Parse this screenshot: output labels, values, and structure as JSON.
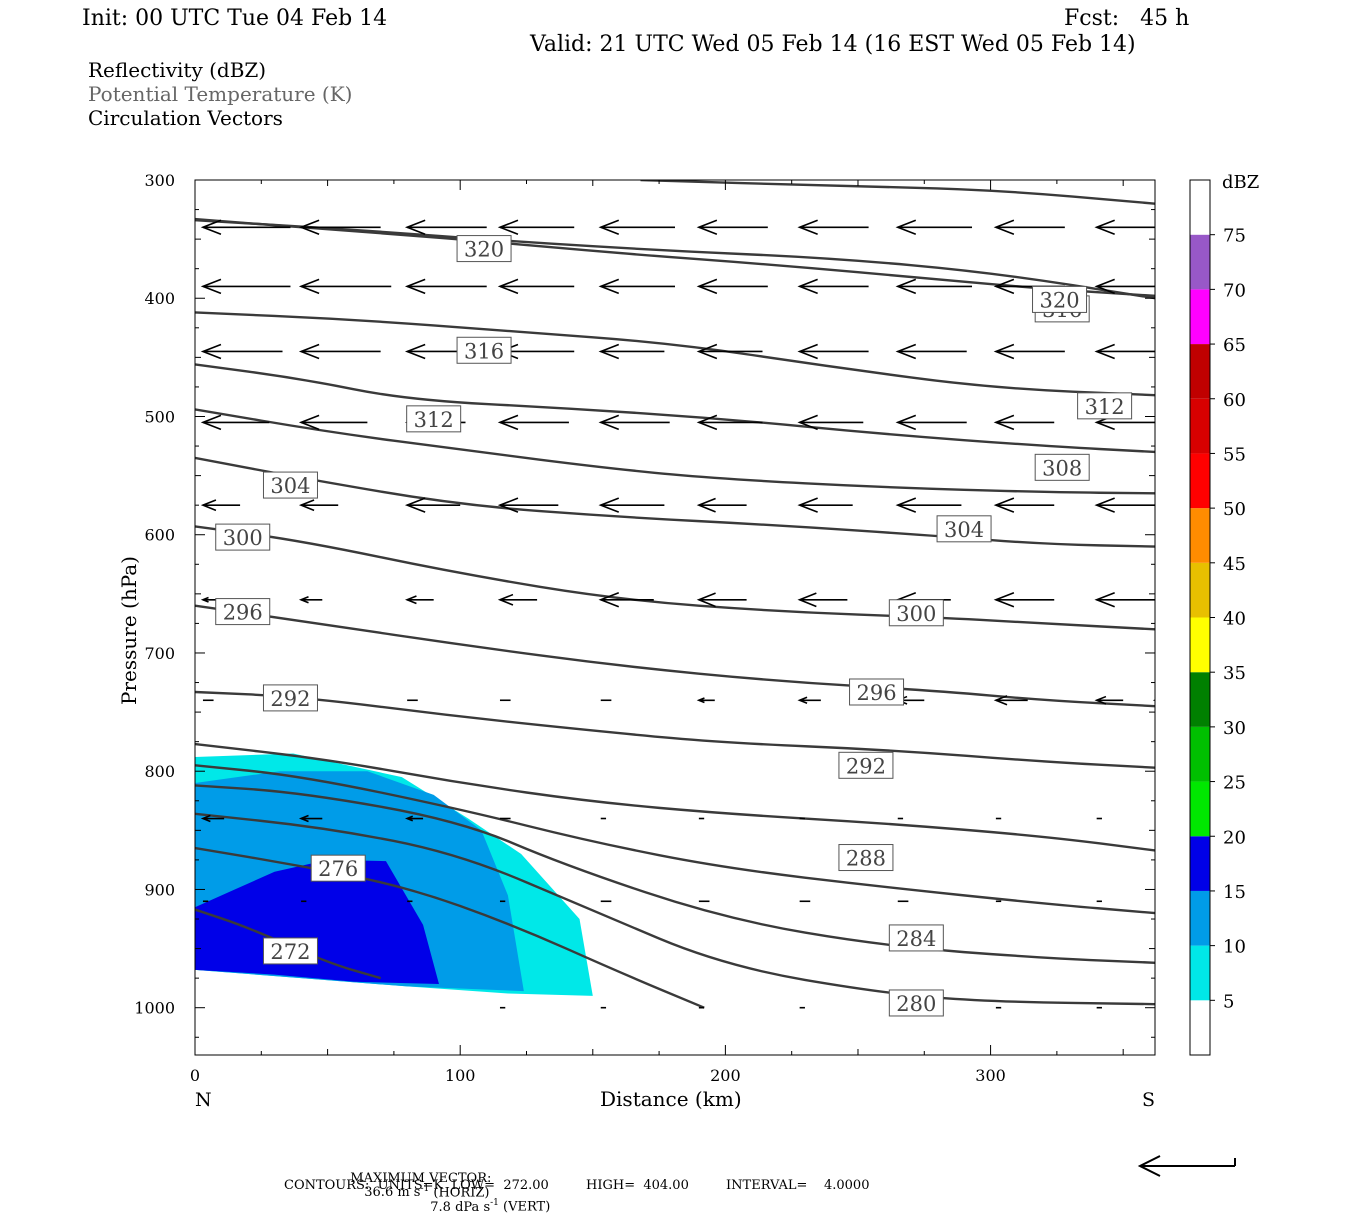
{
  "header": {
    "init": "Init: 00 UTC Tue 04 Feb 14",
    "fcst": "Fcst:   45 h",
    "valid": "Valid: 21 UTC Wed 05 Feb 14 (16 EST Wed 05 Feb 14)"
  },
  "fields": {
    "reflectivity": "Reflectivity (dBZ)",
    "theta": "Potential Temperature (K)",
    "vectors": "Circulation Vectors"
  },
  "chart_data": {
    "type": "contour",
    "xlabel": "Distance (km)",
    "ylabel": "Pressure (hPa)",
    "xlim": [
      0,
      362
    ],
    "ylim": [
      300,
      1040
    ],
    "x_ticks": [
      "0",
      "100",
      "200",
      "300"
    ],
    "y_ticks": [
      "300",
      "400",
      "500",
      "600",
      "700",
      "800",
      "900",
      "1000"
    ],
    "x_end_labels": {
      "left": "N",
      "right": "S"
    },
    "colorbar": {
      "unit": "dBZ",
      "levels": [
        "5",
        "10",
        "15",
        "20",
        "25",
        "30",
        "35",
        "40",
        "45",
        "50",
        "55",
        "60",
        "65",
        "70",
        "75"
      ],
      "colors": [
        "#ffffff",
        "#00e8e8",
        "#009ce8",
        "#0000e8",
        "#00e800",
        "#00c000",
        "#008000",
        "#ffff00",
        "#e8c000",
        "#ff8c00",
        "#ff0000",
        "#d80000",
        "#c00000",
        "#ff00ff",
        "#9858c8",
        "#ffffff"
      ]
    },
    "reflectivity_regions": [
      {
        "dbz": 5,
        "color": "#00e8e8",
        "polygon": [
          [
            0,
            788
          ],
          [
            37,
            785
          ],
          [
            78,
            805
          ],
          [
            103,
            840
          ],
          [
            123,
            870
          ],
          [
            145,
            925
          ],
          [
            150,
            990
          ],
          [
            118,
            988
          ],
          [
            80,
            982
          ],
          [
            40,
            975
          ],
          [
            0,
            968
          ]
        ]
      },
      {
        "dbz": 10,
        "color": "#009ce8",
        "polygon": [
          [
            0,
            810
          ],
          [
            32,
            800
          ],
          [
            65,
            800
          ],
          [
            90,
            820
          ],
          [
            108,
            850
          ],
          [
            118,
            905
          ],
          [
            124,
            986
          ],
          [
            80,
            982
          ],
          [
            40,
            975
          ],
          [
            0,
            968
          ]
        ]
      },
      {
        "dbz": 15,
        "color": "#0000e8",
        "polygon": [
          [
            0,
            915
          ],
          [
            30,
            885
          ],
          [
            50,
            875
          ],
          [
            72,
            876
          ],
          [
            86,
            930
          ],
          [
            92,
            980
          ],
          [
            60,
            978
          ],
          [
            30,
            972
          ],
          [
            0,
            968
          ]
        ]
      }
    ],
    "theta_contours": [
      {
        "label": "272",
        "points": [
          [
            0,
            917
          ],
          [
            20,
            932
          ],
          [
            50,
            962
          ],
          [
            70,
            975
          ]
        ],
        "label_at": [
          36,
          952
        ]
      },
      {
        "label": "276",
        "points": [
          [
            0,
            865
          ],
          [
            40,
            880
          ],
          [
            80,
            898
          ],
          [
            120,
            930
          ],
          [
            160,
            970
          ],
          [
            192,
            1000
          ]
        ],
        "label_at": [
          54,
          882
        ]
      },
      {
        "label": "280",
        "points": [
          [
            0,
            836
          ],
          [
            50,
            848
          ],
          [
            100,
            870
          ],
          [
            150,
            918
          ],
          [
            200,
            965
          ],
          [
            260,
            988
          ],
          [
            300,
            995
          ],
          [
            362,
            997
          ]
        ],
        "label_at": [
          272,
          996
        ]
      },
      {
        "label": "284",
        "points": [
          [
            0,
            812
          ],
          [
            40,
            818
          ],
          [
            100,
            842
          ],
          [
            140,
            880
          ],
          [
            200,
            925
          ],
          [
            260,
            948
          ],
          [
            320,
            958
          ],
          [
            362,
            962
          ]
        ],
        "label_at": [
          272,
          941
        ]
      },
      {
        "label": "288",
        "points": [
          [
            0,
            795
          ],
          [
            40,
            804
          ],
          [
            100,
            832
          ],
          [
            150,
            860
          ],
          [
            200,
            882
          ],
          [
            260,
            898
          ],
          [
            320,
            912
          ],
          [
            362,
            920
          ]
        ],
        "label_at": [
          253,
          873
        ]
      },
      {
        "label": "292",
        "points": [
          [
            0,
            777
          ],
          [
            50,
            790
          ],
          [
            100,
            810
          ],
          [
            150,
            826
          ],
          [
            200,
            836
          ],
          [
            260,
            844
          ],
          [
            320,
            855
          ],
          [
            362,
            867
          ]
        ],
        "label_at": [
          253,
          795
        ]
      },
      {
        "label": "296",
        "points": [
          [
            0,
            733
          ],
          [
            40,
            737
          ],
          [
            100,
            754
          ],
          [
            160,
            768
          ],
          [
            200,
            776
          ],
          [
            262,
            782
          ],
          [
            320,
            792
          ],
          [
            362,
            797
          ]
        ],
        "label_at": [
          257,
          733
        ]
      },
      {
        "label": "300",
        "points": [
          [
            0,
            660
          ],
          [
            40,
            673
          ],
          [
            100,
            693
          ],
          [
            160,
            711
          ],
          [
            220,
            724
          ],
          [
            280,
            732
          ],
          [
            320,
            740
          ],
          [
            362,
            745
          ]
        ],
        "label_at": [
          272,
          666
        ]
      },
      {
        "label": "304",
        "points": [
          [
            0,
            593
          ],
          [
            40,
            605
          ],
          [
            100,
            633
          ],
          [
            160,
            655
          ],
          [
            220,
            665
          ],
          [
            280,
            670
          ],
          [
            320,
            675
          ],
          [
            362,
            680
          ]
        ],
        "label_at": [
          290,
          595
        ]
      },
      {
        "label": "308",
        "points": [
          [
            0,
            535
          ],
          [
            40,
            552
          ],
          [
            100,
            575
          ],
          [
            160,
            585
          ],
          [
            220,
            592
          ],
          [
            280,
            601
          ],
          [
            320,
            608
          ],
          [
            362,
            610
          ]
        ],
        "label_at": [
          327,
          543
        ]
      },
      {
        "label": "312",
        "points": [
          [
            0,
            494
          ],
          [
            50,
            513
          ],
          [
            100,
            528
          ],
          [
            160,
            545
          ],
          [
            200,
            553
          ],
          [
            260,
            560
          ],
          [
            320,
            564
          ],
          [
            362,
            565
          ]
        ],
        "label_at": [
          343,
          491
        ]
      },
      {
        "label": "316",
        "points": [
          [
            0,
            456
          ],
          [
            40,
            468
          ],
          [
            80,
            486
          ],
          [
            140,
            493
          ],
          [
            200,
            502
          ],
          [
            260,
            515
          ],
          [
            320,
            525
          ],
          [
            362,
            530
          ]
        ],
        "label_at": [
          327,
          409
        ]
      },
      {
        "label": "",
        "points": [
          [
            0,
            412
          ],
          [
            60,
            418
          ],
          [
            120,
            428
          ],
          [
            180,
            438
          ],
          [
            240,
            458
          ],
          [
            300,
            476
          ],
          [
            362,
            482
          ]
        ],
        "label_at": null
      },
      {
        "label": "",
        "points": [
          [
            0,
            334
          ],
          [
            60,
            342
          ],
          [
            120,
            352
          ],
          [
            180,
            360
          ],
          [
            240,
            366
          ],
          [
            300,
            378
          ],
          [
            362,
            400
          ]
        ],
        "label_at": null
      },
      {
        "label": "",
        "points": [
          [
            0,
            333
          ],
          [
            40,
            340
          ],
          [
            100,
            350
          ],
          [
            160,
            362
          ],
          [
            220,
            372
          ],
          [
            280,
            384
          ],
          [
            320,
            392
          ],
          [
            362,
            398
          ]
        ],
        "label_at": null
      },
      {
        "label": "",
        "points": [
          [
            168,
            300
          ],
          [
            240,
            305
          ],
          [
            300,
            308
          ],
          [
            362,
            320
          ]
        ],
        "label_at": null
      }
    ],
    "contour_label_boxes": [
      {
        "label": "320",
        "at": [
          109,
          358
        ]
      },
      {
        "label": "320",
        "at": [
          326,
          401
        ]
      },
      {
        "label": "316",
        "at": [
          109,
          444
        ]
      },
      {
        "label": "312",
        "at": [
          90,
          502
        ]
      },
      {
        "label": "304",
        "at": [
          36,
          558
        ]
      },
      {
        "label": "300",
        "at": [
          18,
          602
        ]
      },
      {
        "label": "296",
        "at": [
          18,
          665
        ]
      },
      {
        "label": "292",
        "at": [
          36,
          738
        ]
      }
    ],
    "vectors": {
      "rows_hpa": [
        340,
        390,
        445,
        505,
        575,
        655,
        740,
        840,
        910,
        1000
      ],
      "x_km": [
        3,
        40,
        80,
        115,
        153,
        190,
        228,
        265,
        302,
        340,
        362
      ],
      "lengths_km": [
        [
          33,
          30,
          30,
          28,
          28,
          26,
          26,
          28,
          26,
          26,
          26
        ],
        [
          33,
          34,
          30,
          28,
          28,
          26,
          26,
          28,
          26,
          26,
          26
        ],
        [
          30,
          30,
          20,
          28,
          24,
          24,
          26,
          26,
          26,
          26,
          18
        ],
        [
          25,
          25,
          22,
          26,
          26,
          24,
          24,
          26,
          22,
          22,
          14
        ],
        [
          14,
          14,
          20,
          22,
          24,
          18,
          20,
          24,
          22,
          30,
          18
        ],
        [
          6,
          8,
          10,
          14,
          20,
          18,
          18,
          20,
          22,
          24,
          20
        ],
        [
          4,
          4,
          4,
          4,
          4,
          6,
          8,
          10,
          12,
          10,
          8
        ],
        [
          8,
          8,
          6,
          4,
          2,
          2,
          2,
          2,
          2,
          2,
          2
        ],
        [
          2,
          2,
          2,
          2,
          4,
          4,
          4,
          4,
          2,
          2,
          2
        ],
        [
          0,
          0,
          0,
          2,
          2,
          2,
          2,
          2,
          2,
          2,
          2
        ]
      ]
    }
  },
  "footer": {
    "max_vector_label": "MAXIMUM VECTOR:",
    "horiz_value": "36.6 m s",
    "horiz_sup": "-1",
    "horiz_suffix": " (HORIZ)",
    "vert_value": "7.8 dPa s",
    "vert_sup": "-1",
    "vert_suffix": " (VERT)",
    "contours_line": "CONTOURS:  UNITS=K  LOW=  272.00         HIGH=  404.00         INTERVAL=    4.0000"
  }
}
